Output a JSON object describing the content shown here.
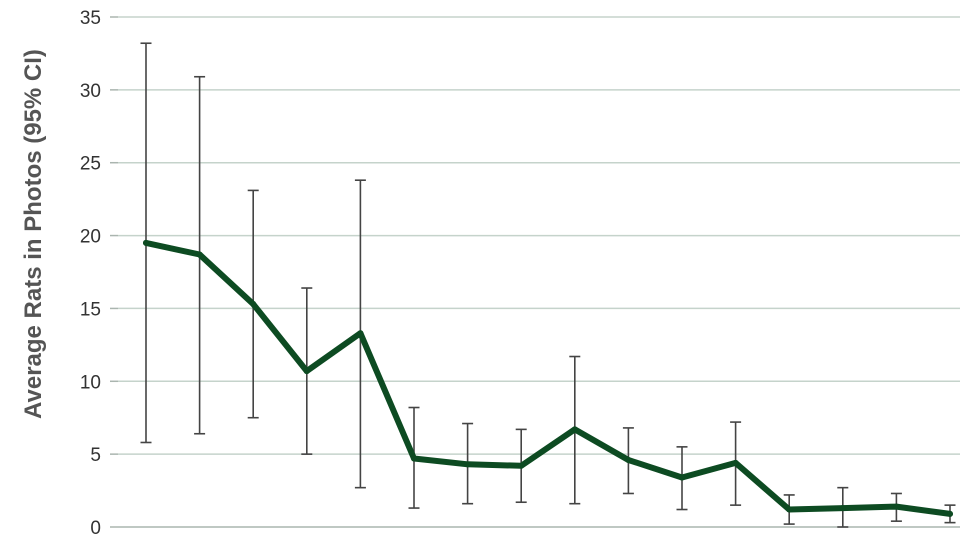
{
  "chart_data": {
    "type": "line",
    "title": "",
    "xlabel": "",
    "ylabel": "Average Rats in Photos (95% CI)",
    "ylim": [
      0,
      35
    ],
    "yticks": [
      "0",
      "5",
      "10",
      "15",
      "20",
      "25",
      "30",
      "35"
    ],
    "grid": true,
    "legend": "none",
    "line_color": "#0d4b22",
    "errorbar_color": "#444444",
    "series": [
      {
        "values": [
          19.5,
          18.7,
          15.3,
          10.7,
          13.3,
          4.7,
          4.3,
          4.2,
          6.7,
          4.6,
          3.4,
          4.4,
          1.2,
          1.3,
          1.4,
          0.9
        ],
        "ci_low": [
          5.8,
          6.4,
          7.5,
          5.0,
          2.7,
          1.3,
          1.6,
          1.7,
          1.6,
          2.3,
          1.2,
          1.5,
          0.2,
          0.0,
          0.4,
          0.3
        ],
        "ci_high": [
          33.2,
          30.9,
          23.1,
          16.4,
          23.8,
          8.2,
          7.1,
          6.7,
          11.7,
          6.8,
          5.5,
          7.2,
          2.2,
          2.7,
          2.3,
          1.5
        ]
      }
    ]
  }
}
